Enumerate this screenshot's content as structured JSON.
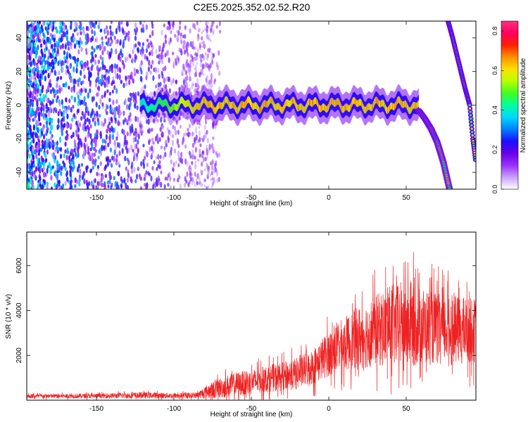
{
  "title": "C2E5.2025.352.02.52.R20",
  "colorbar": {
    "label": "Normalized spectral amplitude",
    "range": [
      0,
      0.85
    ],
    "ticks": [
      "0.0",
      "0.2",
      "0.4",
      "0.6",
      "0.8"
    ],
    "tick_values": [
      0.0,
      0.2,
      0.4,
      0.6,
      0.8
    ],
    "colors": [
      "#ffffff",
      "#c8a0ff",
      "#9a30ff",
      "#6a00e8",
      "#1a10ff",
      "#0080ff",
      "#00d8ff",
      "#00ffa0",
      "#40ff20",
      "#b8ff00",
      "#ffe000",
      "#ff9000",
      "#ff2000",
      "#ff0060",
      "#ff3080"
    ]
  },
  "chart_data": [
    {
      "type": "heatmap",
      "title": "",
      "xlabel": "Height of straight line (km)",
      "ylabel": "Frequency (Hz)",
      "xlim": [
        -195,
        95
      ],
      "ylim": [
        -50,
        50
      ],
      "xticks": [
        -150,
        -100,
        -50,
        0,
        50
      ],
      "xtick_labels": [
        "-150",
        "-100",
        "-50",
        "0",
        "50"
      ],
      "yticks": [
        -40,
        -20,
        0,
        20,
        40
      ],
      "ytick_labels": [
        "-40",
        "-20",
        "0",
        "20",
        "40"
      ],
      "features": {
        "noise_region_km": [
          -195,
          -85
        ],
        "carrier_band": {
          "x_range_km": [
            -122,
            58
          ],
          "center_hz": 0,
          "halfwidth_hz": 4
        },
        "carrier_fall": [
          [
            58,
            -3
          ],
          [
            62,
            -8
          ],
          [
            66,
            -14
          ],
          [
            70,
            -22
          ],
          [
            74,
            -34
          ],
          [
            78,
            -50
          ]
        ],
        "image_line": [
          [
            77,
            50
          ],
          [
            80,
            40
          ],
          [
            84,
            25
          ],
          [
            88,
            10
          ],
          [
            91,
            0
          ],
          [
            93,
            -20
          ],
          [
            95,
            -34
          ]
        ]
      }
    },
    {
      "type": "line",
      "title": "",
      "xlabel": "Height of straight line (km)",
      "ylabel": "SNR (10 * v/v)",
      "xlim": [
        -195,
        95
      ],
      "ylim": [
        0,
        7500
      ],
      "xticks": [
        -150,
        -100,
        -50,
        0,
        50
      ],
      "xtick_labels": [
        "-150",
        "-100",
        "-50",
        "0",
        "50"
      ],
      "yticks": [
        2000,
        4000,
        6000
      ],
      "ytick_labels": [
        "2000",
        "4000",
        "6000"
      ],
      "color": "#ee2222",
      "envelope": {
        "x": [
          -195,
          -150,
          -120,
          -100,
          -85,
          -80,
          -70,
          -60,
          -50,
          -40,
          -30,
          -20,
          -10,
          0,
          10,
          20,
          30,
          40,
          50,
          60,
          70,
          80,
          95
        ],
        "mean": [
          180,
          190,
          220,
          200,
          220,
          350,
          550,
          700,
          800,
          950,
          1050,
          1200,
          1500,
          2100,
          2500,
          2800,
          3100,
          3300,
          3400,
          3300,
          3200,
          3150,
          3100
        ],
        "spread": [
          120,
          130,
          180,
          150,
          160,
          350,
          600,
          700,
          700,
          750,
          800,
          900,
          1000,
          1300,
          1500,
          1800,
          2000,
          2300,
          2500,
          2200,
          2000,
          1900,
          1800
        ]
      }
    }
  ]
}
